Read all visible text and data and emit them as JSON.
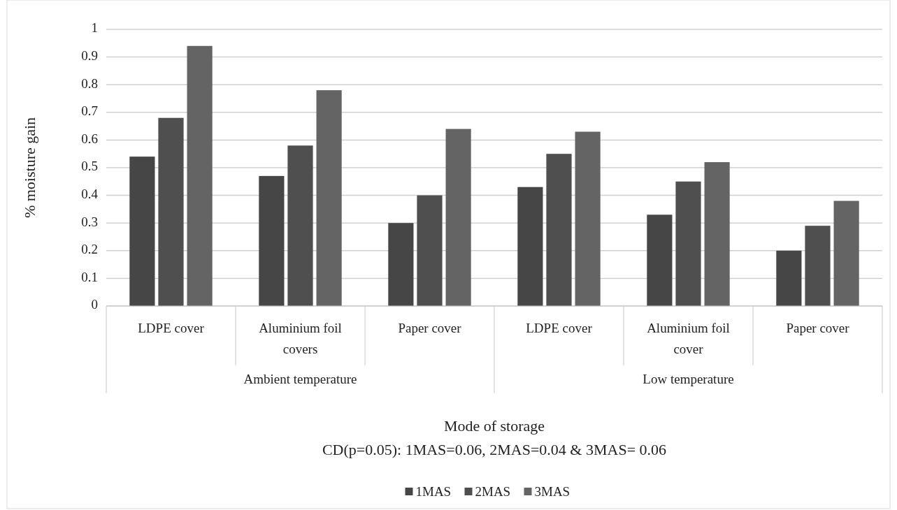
{
  "chart_data": {
    "type": "bar",
    "xlabel": "Mode of storage",
    "ylabel": "% moisture gain",
    "categories": [
      "LDPE cover",
      "Aluminium foil covers",
      "Paper cover",
      "LDPE cover",
      "Aluminium foil cover",
      "Paper cover"
    ],
    "series": [
      {
        "name": "1MAS",
        "color": "#464646",
        "values": [
          0.54,
          0.47,
          0.3,
          0.43,
          0.33,
          0.2
        ]
      },
      {
        "name": "2MAS",
        "color": "#4f4f4f",
        "values": [
          0.68,
          0.58,
          0.4,
          0.55,
          0.45,
          0.29
        ]
      },
      {
        "name": "3MAS",
        "color": "#646464",
        "values": [
          0.94,
          0.78,
          0.64,
          0.63,
          0.52,
          0.38
        ]
      }
    ],
    "ylim": [
      0,
      1
    ],
    "yticks": [
      0,
      0.1,
      0.2,
      0.3,
      0.4,
      0.5,
      0.6,
      0.7,
      0.8,
      0.9,
      1
    ],
    "grid": "y",
    "legend": "bottom",
    "annotations": [
      "Ambient temperature",
      "Low temperature",
      "CD(p=0.05): 1MAS=0.06, 2MAS=0.04 & 3MAS= 0.06"
    ]
  }
}
